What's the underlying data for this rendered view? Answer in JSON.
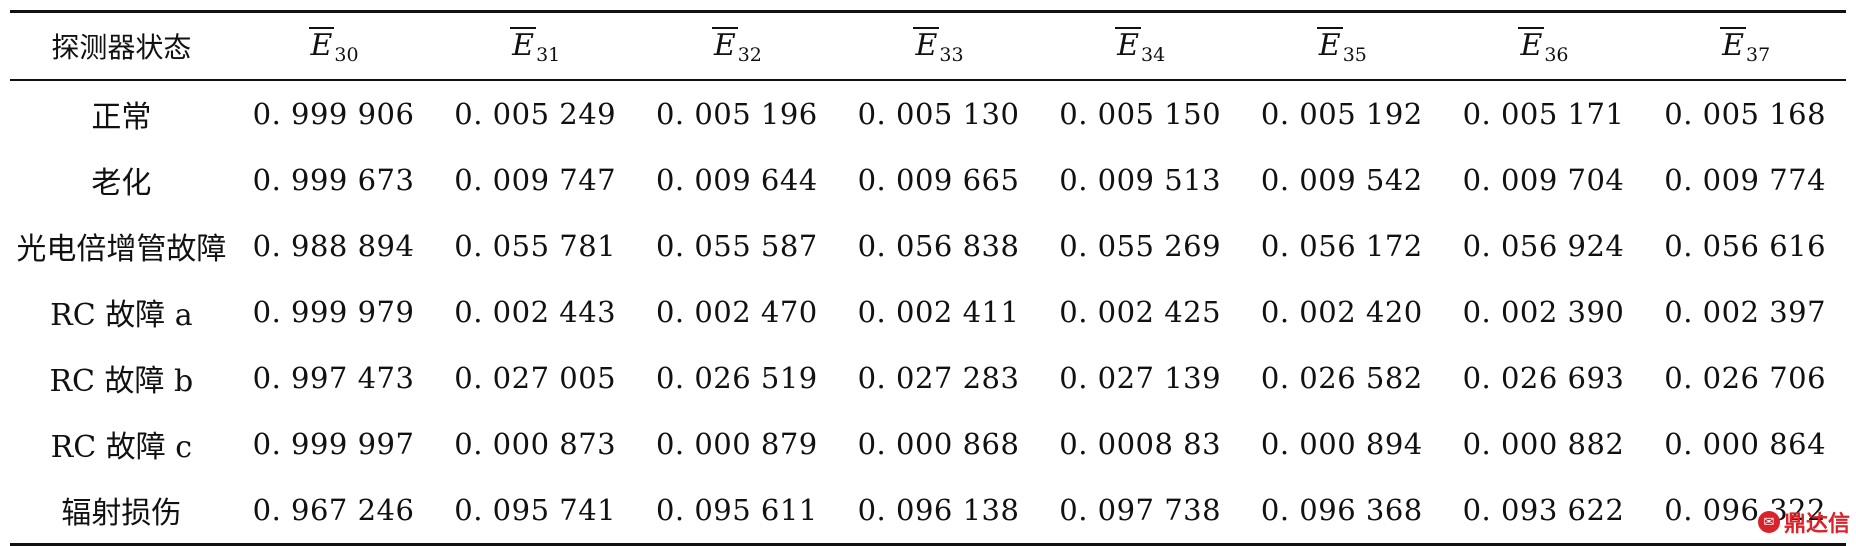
{
  "table": {
    "header": {
      "state_label": "探测器状态",
      "columns": [
        {
          "letter": "E",
          "sub": "30"
        },
        {
          "letter": "E",
          "sub": "31"
        },
        {
          "letter": "E",
          "sub": "32"
        },
        {
          "letter": "E",
          "sub": "33"
        },
        {
          "letter": "E",
          "sub": "34"
        },
        {
          "letter": "E",
          "sub": "35"
        },
        {
          "letter": "E",
          "sub": "36"
        },
        {
          "letter": "E",
          "sub": "37"
        }
      ]
    },
    "rows": [
      {
        "label": "正常",
        "values": [
          "0. 999 906",
          "0. 005 249",
          "0. 005 196",
          "0. 005 130",
          "0. 005 150",
          "0. 005 192",
          "0. 005 171",
          "0. 005 168"
        ]
      },
      {
        "label": "老化",
        "values": [
          "0. 999 673",
          "0. 009 747",
          "0. 009 644",
          "0. 009 665",
          "0. 009 513",
          "0. 009 542",
          "0. 009 704",
          "0. 009 774"
        ]
      },
      {
        "label": "光电倍增管故障",
        "values": [
          "0. 988 894",
          "0. 055 781",
          "0. 055 587",
          "0. 056 838",
          "0. 055 269",
          "0. 056 172",
          "0. 056 924",
          "0. 056 616"
        ]
      },
      {
        "label": "RC 故障 a",
        "values": [
          "0. 999 979",
          "0. 002 443",
          "0. 002 470",
          "0. 002 411",
          "0. 002 425",
          "0. 002 420",
          "0. 002 390",
          "0. 002 397"
        ]
      },
      {
        "label": "RC 故障 b",
        "values": [
          "0. 997 473",
          "0. 027 005",
          "0. 026 519",
          "0. 027 283",
          "0. 027 139",
          "0. 026 582",
          "0. 026 693",
          "0. 026 706"
        ]
      },
      {
        "label": "RC 故障 c",
        "values": [
          "0. 999 997",
          "0. 000 873",
          "0. 000 879",
          "0. 000 868",
          "0. 0008 83",
          "0. 000 894",
          "0. 000 882",
          "0. 000 864"
        ]
      },
      {
        "label": "辐射损伤",
        "values": [
          "0. 967 246",
          "0. 095 741",
          "0. 095 611",
          "0. 096 138",
          "0. 097 738",
          "0. 096 368",
          "0. 093 622",
          "0. 096 322"
        ]
      }
    ]
  },
  "watermark": {
    "text": "鼎达信",
    "icon_name": "logo-badge-icon",
    "color": "#d8232a"
  }
}
